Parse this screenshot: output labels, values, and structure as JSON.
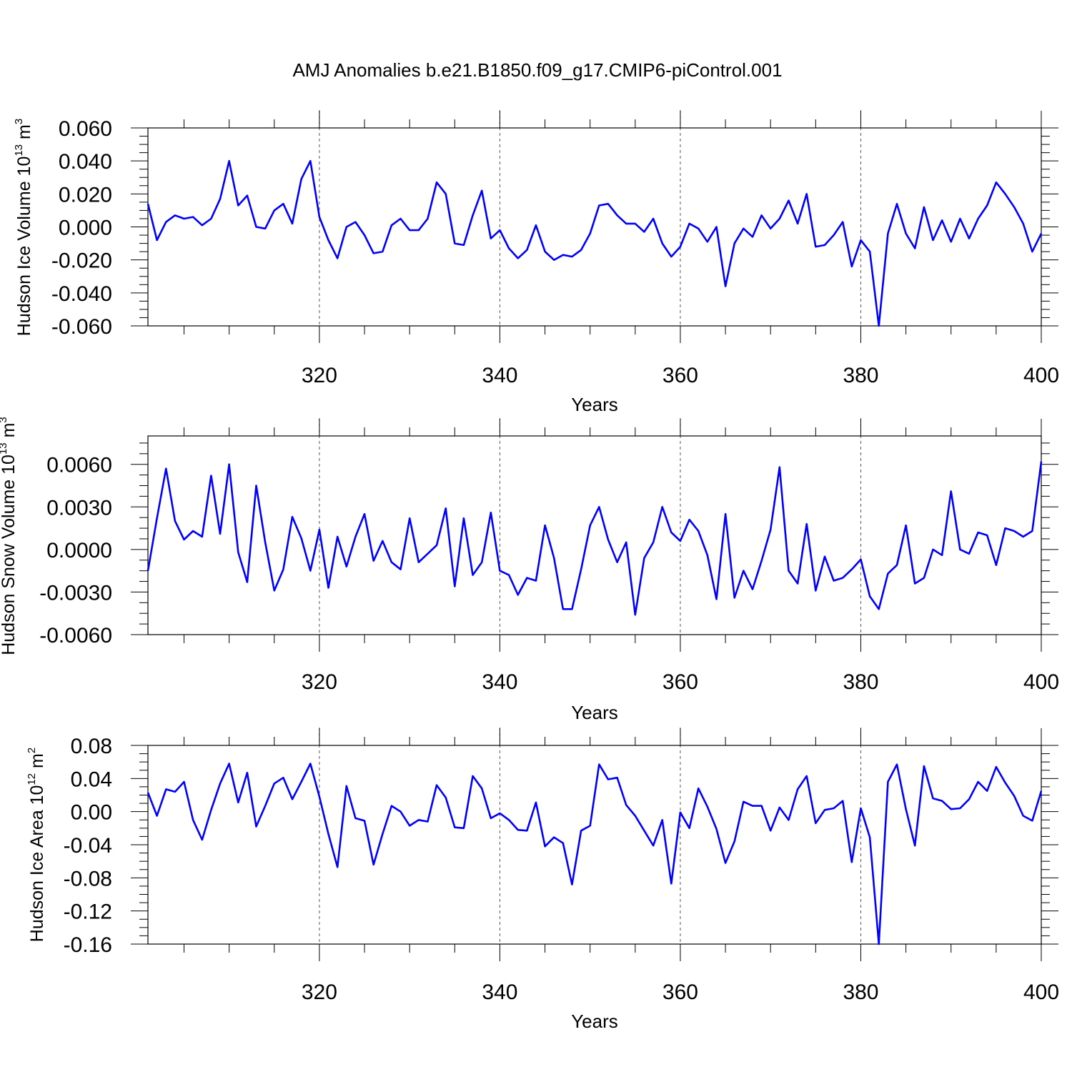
{
  "title": "AMJ Anomalies b.e21.B1850.f09_g17.CMIP6-piControl.001",
  "line_color": "#0000ff",
  "chart_data": [
    {
      "type": "line",
      "ylabel_main": "Hudson Ice Volume 10",
      "ylabel_exp": "13",
      "ylabel_unit": " m",
      "ylabel_unit_exp": "3",
      "xlabel": "Years",
      "xlim": [
        301,
        400
      ],
      "ylim": [
        -0.06,
        0.06
      ],
      "xticks": [
        320,
        340,
        360,
        380,
        400
      ],
      "xtick_labels": [
        "320",
        "340",
        "360",
        "380",
        "400"
      ],
      "yticks": [
        -0.06,
        -0.04,
        -0.02,
        0.0,
        0.02,
        0.04,
        0.06
      ],
      "ytick_labels": [
        "-0.060",
        "-0.040",
        "-0.020",
        "0.000",
        "0.020",
        "0.040",
        "0.060"
      ],
      "grid_x": [
        320,
        340,
        360,
        380
      ],
      "x_start": 301,
      "values": [
        0.014,
        -0.008,
        0.003,
        0.007,
        0.005,
        0.006,
        0.001,
        0.005,
        0.017,
        0.04,
        0.013,
        0.019,
        0.0,
        -0.001,
        0.01,
        0.014,
        0.002,
        0.029,
        0.04,
        0.006,
        -0.008,
        -0.019,
        0.0,
        0.003,
        -0.005,
        -0.016,
        -0.015,
        0.001,
        0.005,
        -0.002,
        -0.002,
        0.005,
        0.027,
        0.02,
        -0.01,
        -0.011,
        0.007,
        0.022,
        -0.007,
        -0.002,
        -0.013,
        -0.019,
        -0.014,
        0.001,
        -0.015,
        -0.02,
        -0.017,
        -0.018,
        -0.014,
        -0.004,
        0.013,
        0.014,
        0.007,
        0.002,
        0.002,
        -0.003,
        0.005,
        -0.01,
        -0.018,
        -0.012,
        0.002,
        -0.001,
        -0.009,
        0.0,
        -0.036,
        -0.01,
        -0.001,
        -0.006,
        0.007,
        -0.001,
        0.005,
        0.016,
        0.002,
        0.02,
        -0.012,
        -0.011,
        -0.005,
        0.003,
        -0.024,
        -0.008,
        -0.015,
        -0.06,
        -0.004,
        0.014,
        -0.004,
        -0.013,
        0.012,
        -0.008,
        0.004,
        -0.009,
        0.005,
        -0.007,
        0.005,
        0.013,
        0.027,
        0.02,
        0.012,
        0.002,
        -0.015,
        -0.004
      ]
    },
    {
      "type": "line",
      "ylabel_main": "Hudson Snow Volume 10",
      "ylabel_exp": "13",
      "ylabel_unit": " m",
      "ylabel_unit_exp": "3",
      "xlabel": "Years",
      "xlim": [
        301,
        400
      ],
      "ylim": [
        -0.006,
        0.008
      ],
      "xticks": [
        320,
        340,
        360,
        380,
        400
      ],
      "xtick_labels": [
        "320",
        "340",
        "360",
        "380",
        "400"
      ],
      "yticks": [
        -0.006,
        -0.003,
        0.0,
        0.003,
        0.006
      ],
      "ytick_labels": [
        "-0.0060",
        "-0.0030",
        "0.0000",
        "0.0030",
        "0.0060"
      ],
      "grid_x": [
        320,
        340,
        360,
        380
      ],
      "x_start": 301,
      "values": [
        -0.0015,
        0.0022,
        0.0057,
        0.002,
        0.0007,
        0.0013,
        0.0009,
        0.0052,
        0.0011,
        0.006,
        -0.0002,
        -0.0023,
        0.0045,
        0.0005,
        -0.0029,
        -0.0014,
        0.0023,
        0.0008,
        -0.0015,
        0.0014,
        -0.0027,
        0.0009,
        -0.0012,
        0.0009,
        0.0025,
        -0.0008,
        0.0006,
        -0.0009,
        -0.0014,
        0.0022,
        -0.0009,
        -0.0003,
        0.0003,
        0.0029,
        -0.0026,
        0.0022,
        -0.0018,
        -0.0009,
        0.0026,
        -0.0015,
        -0.0018,
        -0.0032,
        -0.002,
        -0.0022,
        0.0017,
        -0.0006,
        -0.0042,
        -0.0042,
        -0.0014,
        0.0017,
        0.003,
        0.0007,
        -0.0009,
        0.0005,
        -0.0046,
        -0.0006,
        0.0005,
        0.003,
        0.0012,
        0.0006,
        0.0021,
        0.0013,
        -0.0004,
        -0.0035,
        0.0025,
        -0.0034,
        -0.0015,
        -0.0028,
        -0.0008,
        0.0014,
        0.0058,
        -0.0015,
        -0.0024,
        0.0018,
        -0.0029,
        -0.0005,
        -0.0022,
        -0.002,
        -0.0014,
        -0.0007,
        -0.0033,
        -0.0042,
        -0.0017,
        -0.0011,
        0.0017,
        -0.0024,
        -0.002,
        0.0,
        -0.0004,
        0.0041,
        0.0,
        -0.0003,
        0.0012,
        0.001,
        -0.0011,
        0.0015,
        0.0013,
        0.0009,
        0.0013,
        0.0062
      ]
    },
    {
      "type": "line",
      "ylabel_main": "Hudson Ice Area 10",
      "ylabel_exp": "12",
      "ylabel_unit": " m",
      "ylabel_unit_exp": "2",
      "xlabel": "Years",
      "xlim": [
        301,
        400
      ],
      "ylim": [
        -0.16,
        0.08
      ],
      "xticks": [
        320,
        340,
        360,
        380,
        400
      ],
      "xtick_labels": [
        "320",
        "340",
        "360",
        "380",
        "400"
      ],
      "yticks": [
        -0.16,
        -0.12,
        -0.08,
        -0.04,
        0.0,
        0.04,
        0.08
      ],
      "ytick_labels": [
        "-0.16",
        "-0.12",
        "-0.08",
        "-0.04",
        "0.00",
        "0.04",
        "0.08"
      ],
      "grid_x": [
        320,
        340,
        360,
        380
      ],
      "x_start": 301,
      "values": [
        0.023,
        -0.005,
        0.027,
        0.024,
        0.036,
        -0.01,
        -0.034,
        0.002,
        0.034,
        0.058,
        0.011,
        0.047,
        -0.018,
        0.007,
        0.034,
        0.041,
        0.015,
        0.036,
        0.058,
        0.018,
        -0.027,
        -0.067,
        0.031,
        -0.008,
        -0.011,
        -0.064,
        -0.027,
        0.007,
        0.0,
        -0.017,
        -0.01,
        -0.012,
        0.032,
        0.017,
        -0.019,
        -0.02,
        0.043,
        0.028,
        -0.008,
        -0.002,
        -0.01,
        -0.022,
        -0.023,
        0.011,
        -0.042,
        -0.031,
        -0.038,
        -0.088,
        -0.023,
        -0.017,
        0.057,
        0.039,
        0.041,
        0.008,
        -0.005,
        -0.023,
        -0.041,
        -0.01,
        -0.087,
        -0.001,
        -0.02,
        0.028,
        0.006,
        -0.021,
        -0.062,
        -0.036,
        0.012,
        0.007,
        0.007,
        -0.023,
        0.005,
        -0.01,
        0.027,
        0.043,
        -0.014,
        0.002,
        0.004,
        0.013,
        -0.061,
        0.004,
        -0.031,
        -0.16,
        0.036,
        0.057,
        0.003,
        -0.041,
        0.055,
        0.016,
        0.013,
        0.003,
        0.004,
        0.015,
        0.036,
        0.025,
        0.054,
        0.035,
        0.019,
        -0.005,
        -0.011,
        0.025
      ]
    }
  ]
}
